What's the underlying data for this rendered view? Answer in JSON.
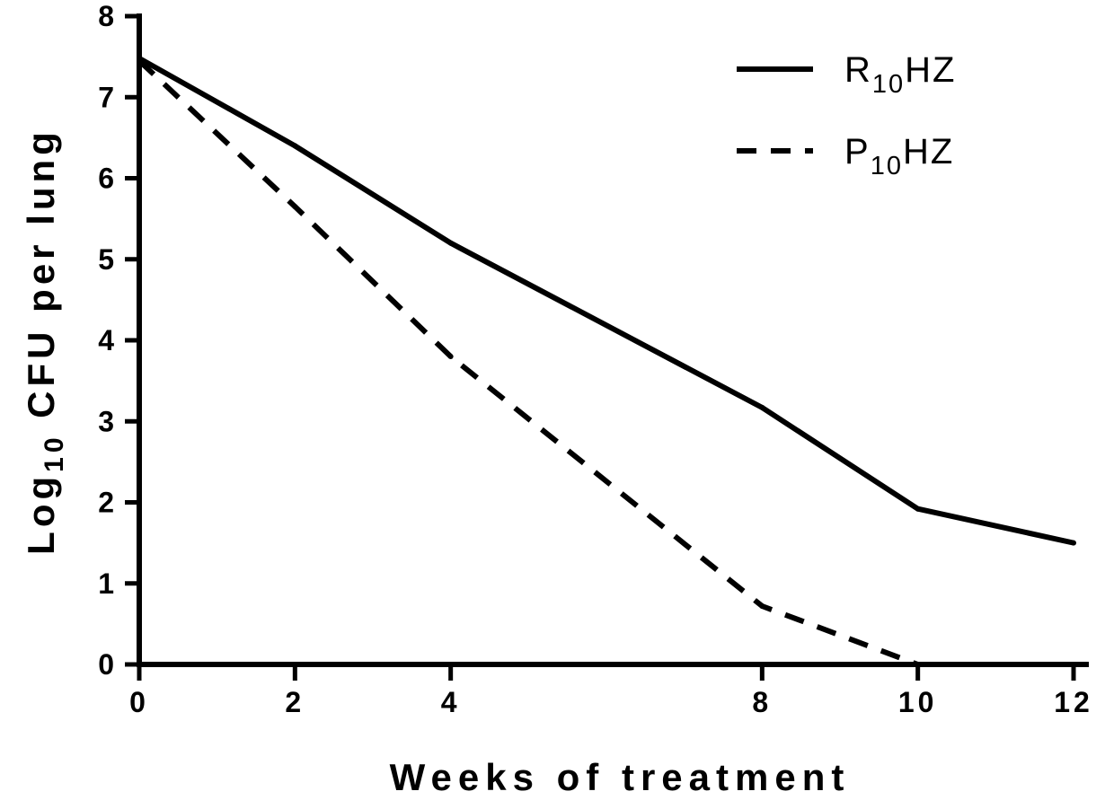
{
  "chart_data": {
    "type": "line",
    "xlabel": "Weeks of treatment",
    "ylabel": {
      "prefix": "Log",
      "sub": "10",
      "suffix": " CFU per lung"
    },
    "xlim": [
      0,
      12
    ],
    "ylim": [
      0,
      8
    ],
    "x_ticks": [
      0,
      2,
      4,
      8,
      10,
      12
    ],
    "y_ticks": [
      0,
      1,
      2,
      3,
      4,
      5,
      6,
      7,
      8
    ],
    "grid": false,
    "legend_position": "top-right",
    "series": [
      {
        "name": {
          "main": "R",
          "sub": "10",
          "rest": "HZ"
        },
        "style": "solid",
        "color": "#000000",
        "x": [
          0,
          2,
          4,
          8,
          10,
          12
        ],
        "y": [
          7.48,
          6.4,
          5.2,
          3.17,
          1.92,
          1.5
        ]
      },
      {
        "name": {
          "main": "P",
          "sub": "10",
          "rest": "HZ"
        },
        "style": "dashed",
        "color": "#000000",
        "x": [
          0,
          2,
          4,
          8,
          10
        ],
        "y": [
          7.45,
          5.65,
          3.8,
          0.72,
          0.0
        ]
      }
    ]
  }
}
